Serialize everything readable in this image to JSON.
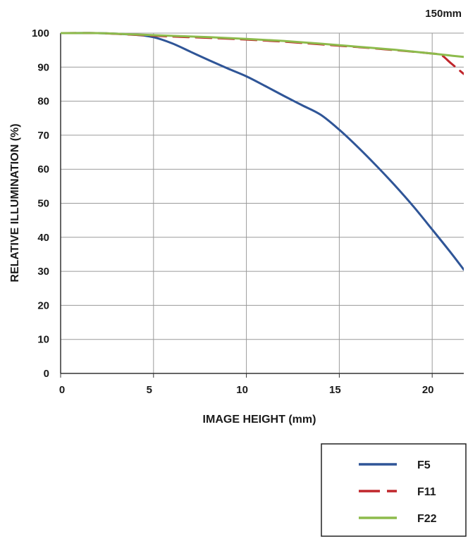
{
  "chart_data": {
    "type": "line",
    "title": "150mm",
    "xlabel": "IMAGE HEIGHT (mm)",
    "ylabel": "RELATIVE ILLUMINATION (%)",
    "xlim": [
      0,
      21.7
    ],
    "ylim": [
      0,
      100
    ],
    "x_ticks": [
      "0",
      "5",
      "10",
      "15",
      "20"
    ],
    "y_ticks": [
      "0",
      "10",
      "20",
      "30",
      "40",
      "50",
      "60",
      "70",
      "80",
      "90",
      "100"
    ],
    "grid": true,
    "legend_position": "bottom-right",
    "series": [
      {
        "name": "F5",
        "color": "#2f5597",
        "dash": "solid",
        "points": [
          [
            0,
            100
          ],
          [
            2,
            100
          ],
          [
            4,
            99.5
          ],
          [
            5,
            98.8
          ],
          [
            6,
            97
          ],
          [
            7,
            94.5
          ],
          [
            8,
            92
          ],
          [
            9,
            89.6
          ],
          [
            10,
            87.3
          ],
          [
            11,
            84.5
          ],
          [
            12,
            81.6
          ],
          [
            13,
            78.8
          ],
          [
            14,
            76
          ],
          [
            15,
            71.6
          ],
          [
            16,
            66.5
          ],
          [
            17,
            61
          ],
          [
            18,
            55.2
          ],
          [
            19,
            49
          ],
          [
            20,
            42.3
          ],
          [
            21,
            35.5
          ],
          [
            21.7,
            30.5
          ]
        ]
      },
      {
        "name": "F11",
        "color": "#c0262c",
        "dash": "dashed",
        "points": [
          [
            0,
            100
          ],
          [
            2,
            100
          ],
          [
            4,
            99.5
          ],
          [
            6,
            99
          ],
          [
            8,
            98.6
          ],
          [
            10,
            98.1
          ],
          [
            12,
            97.5
          ],
          [
            14,
            96.7
          ],
          [
            16,
            95.9
          ],
          [
            18,
            95
          ],
          [
            20,
            94
          ],
          [
            20.5,
            93.5
          ],
          [
            21,
            91.2
          ],
          [
            21.7,
            88
          ]
        ]
      },
      {
        "name": "F22",
        "color": "#8dbb4c",
        "dash": "solid",
        "points": [
          [
            0,
            100
          ],
          [
            2,
            100
          ],
          [
            4,
            99.6
          ],
          [
            6,
            99.2
          ],
          [
            8,
            98.8
          ],
          [
            10,
            98.3
          ],
          [
            12,
            97.7
          ],
          [
            14,
            96.9
          ],
          [
            16,
            96
          ],
          [
            18,
            95.1
          ],
          [
            20,
            94
          ],
          [
            21,
            93.4
          ],
          [
            21.7,
            93
          ]
        ]
      }
    ]
  }
}
